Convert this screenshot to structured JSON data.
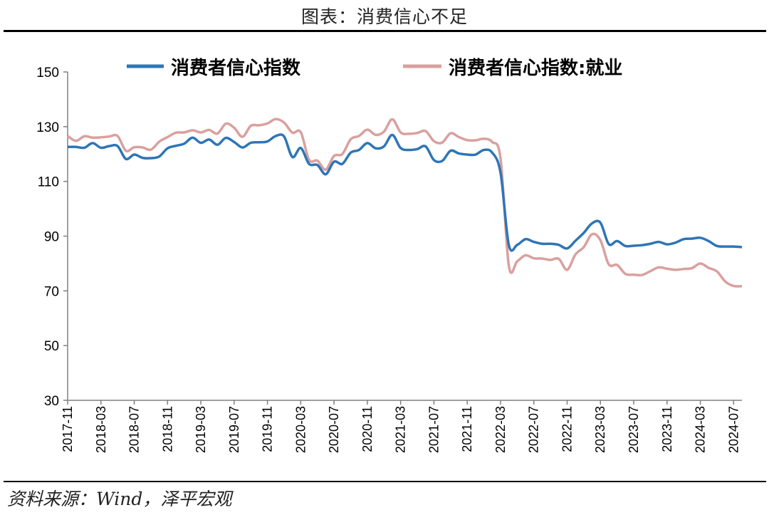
{
  "header": {
    "title": "图表：消费信心不足"
  },
  "footer": {
    "source": "资料来源：Wind，泽平宏观"
  },
  "colors": {
    "series1": "#2e75b6",
    "series2": "#d9a09e",
    "axis": "#808080"
  },
  "chart_data": {
    "type": "line",
    "title": "图表：消费信心不足",
    "xlabel": "",
    "ylabel": "",
    "ylim": [
      30,
      150
    ],
    "yticks": [
      30,
      50,
      70,
      90,
      110,
      130,
      150
    ],
    "legend_position": "top",
    "grid": false,
    "xtick_labels": [
      "2017-11",
      "2018-03",
      "2018-07",
      "2018-11",
      "2019-03",
      "2019-07",
      "2019-11",
      "2020-03",
      "2020-07",
      "2020-11",
      "2021-03",
      "2021-07",
      "2021-11",
      "2022-03",
      "2022-07",
      "2022-11",
      "2023-03",
      "2023-07",
      "2023-11",
      "2024-03",
      "2024-07"
    ],
    "x": [
      "2017-11",
      "2017-12",
      "2018-01",
      "2018-02",
      "2018-03",
      "2018-04",
      "2018-05",
      "2018-06",
      "2018-07",
      "2018-08",
      "2018-09",
      "2018-10",
      "2018-11",
      "2018-12",
      "2019-01",
      "2019-02",
      "2019-03",
      "2019-04",
      "2019-05",
      "2019-06",
      "2019-07",
      "2019-08",
      "2019-09",
      "2019-10",
      "2019-11",
      "2019-12",
      "2020-01",
      "2020-02",
      "2020-03",
      "2020-04",
      "2020-05",
      "2020-06",
      "2020-07",
      "2020-08",
      "2020-09",
      "2020-10",
      "2020-11",
      "2020-12",
      "2021-01",
      "2021-02",
      "2021-03",
      "2021-04",
      "2021-05",
      "2021-06",
      "2021-07",
      "2021-08",
      "2021-09",
      "2021-10",
      "2021-11",
      "2021-12",
      "2022-01",
      "2022-02",
      "2022-03",
      "2022-04",
      "2022-05",
      "2022-06",
      "2022-07",
      "2022-08",
      "2022-09",
      "2022-10",
      "2022-11",
      "2022-12",
      "2023-01",
      "2023-02",
      "2023-03",
      "2023-04",
      "2023-05",
      "2023-06",
      "2023-07",
      "2023-08",
      "2023-09",
      "2023-10",
      "2023-11",
      "2023-12",
      "2024-01",
      "2024-02",
      "2024-03",
      "2024-04",
      "2024-05",
      "2024-06",
      "2024-07",
      "2024-08"
    ],
    "series": [
      {
        "name": "消费者信心指数",
        "values": [
          122.6,
          122.6,
          122.3,
          124.0,
          122.3,
          122.9,
          122.9,
          118.2,
          119.8,
          118.6,
          118.5,
          119.1,
          122.1,
          123.0,
          123.8,
          126.0,
          124.1,
          125.3,
          123.4,
          125.9,
          124.4,
          122.4,
          124.1,
          124.3,
          124.6,
          126.6,
          126.4,
          118.9,
          122.2,
          116.4,
          116.0,
          112.6,
          117.2,
          116.4,
          120.5,
          121.5,
          124.0,
          122.1,
          122.8,
          127.0,
          122.2,
          121.5,
          121.8,
          122.8,
          117.8,
          117.5,
          121.2,
          120.2,
          119.8,
          119.8,
          121.5,
          120.5,
          113.2,
          86.7,
          86.8,
          88.9,
          87.9,
          87.2,
          87.2,
          86.8,
          85.5,
          88.3,
          91.2,
          94.7,
          94.9,
          87.1,
          88.2,
          86.4,
          86.5,
          86.7,
          87.2,
          87.9,
          87.0,
          87.6,
          88.9,
          89.1,
          89.4,
          88.2,
          86.4,
          86.2,
          86.2,
          86.0
        ]
      },
      {
        "name": "消费者信心指数:就业",
        "values": [
          126.6,
          124.8,
          126.5,
          126.0,
          126.1,
          126.4,
          126.6,
          121.2,
          122.5,
          122.4,
          121.6,
          124.5,
          126.2,
          127.8,
          127.9,
          128.7,
          127.9,
          128.8,
          127.5,
          131.1,
          129.6,
          126.3,
          130.3,
          130.5,
          131.2,
          132.8,
          131.5,
          127.8,
          128.0,
          117.9,
          117.6,
          114.3,
          119.3,
          120.0,
          125.4,
          126.6,
          128.9,
          127.0,
          128.2,
          132.7,
          127.9,
          127.4,
          127.7,
          128.4,
          124.7,
          124.2,
          127.6,
          126.2,
          125.1,
          125.0,
          125.6,
          124.4,
          118.4,
          79.1,
          80.8,
          83.0,
          81.9,
          81.8,
          81.3,
          81.7,
          77.7,
          83.3,
          86.0,
          90.7,
          88.5,
          79.7,
          79.5,
          76.2,
          75.9,
          75.8,
          77.2,
          78.6,
          78.1,
          77.7,
          78.0,
          78.3,
          80.0,
          78.4,
          77.1,
          73.4,
          71.8,
          71.7
        ]
      }
    ]
  }
}
